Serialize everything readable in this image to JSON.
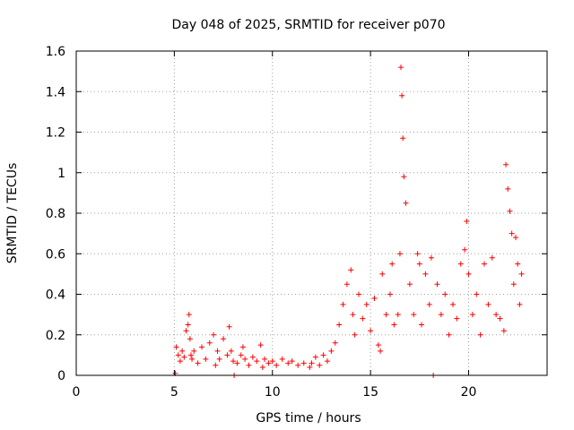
{
  "chart_data": {
    "type": "scatter",
    "title": "Day 048 of 2025, SRMTID for receiver p070",
    "xlabel": "GPS time / hours",
    "ylabel": "SRMTID / TECUs",
    "xlim": [
      0,
      24
    ],
    "ylim": [
      0,
      1.6
    ],
    "xticks": [
      0,
      5,
      10,
      15,
      20
    ],
    "xtick_labels": [
      "0",
      "5",
      "10",
      "15",
      "20"
    ],
    "yticks": [
      0,
      0.2,
      0.4,
      0.6,
      0.8,
      1,
      1.2,
      1.4,
      1.6
    ],
    "ytick_labels": [
      "0",
      "0.2",
      "0.4",
      "0.6",
      "0.8",
      "1",
      "1.2",
      "1.4",
      "1.6"
    ],
    "grid": true,
    "marker": "+",
    "colors": {
      "series": "#ff0000",
      "grid": "#a0a0a0",
      "axis": "#000000"
    },
    "series": [
      {
        "name": "SRMTID",
        "x": [
          5.05,
          5.1,
          5.2,
          5.3,
          5.4,
          5.5,
          5.6,
          5.7,
          5.75,
          5.8,
          5.85,
          5.9,
          6.0,
          6.2,
          6.4,
          6.6,
          6.8,
          7.0,
          7.1,
          7.2,
          7.3,
          7.5,
          7.7,
          7.8,
          7.9,
          8.0,
          8.05,
          8.2,
          8.4,
          8.5,
          8.6,
          8.8,
          9.0,
          9.2,
          9.4,
          9.5,
          9.6,
          9.8,
          10.0,
          10.2,
          10.5,
          10.8,
          11.0,
          11.3,
          11.6,
          11.9,
          12.0,
          12.2,
          12.4,
          12.6,
          12.8,
          13.0,
          13.2,
          13.4,
          13.6,
          13.8,
          14.0,
          14.1,
          14.2,
          14.4,
          14.6,
          14.8,
          15.0,
          15.2,
          15.4,
          15.5,
          15.6,
          15.8,
          16.0,
          16.1,
          16.2,
          16.4,
          16.5,
          16.55,
          16.6,
          16.65,
          16.7,
          16.8,
          17.0,
          17.2,
          17.4,
          17.5,
          17.6,
          17.8,
          18.0,
          18.1,
          18.2,
          18.4,
          18.6,
          18.8,
          19.0,
          19.2,
          19.4,
          19.6,
          19.8,
          19.9,
          20.0,
          20.2,
          20.4,
          20.6,
          20.8,
          21.0,
          21.2,
          21.4,
          21.6,
          21.8,
          21.9,
          22.0,
          22.1,
          22.2,
          22.3,
          22.4,
          22.5,
          22.6,
          22.7
        ],
        "values": [
          0.01,
          0.14,
          0.1,
          0.07,
          0.12,
          0.09,
          0.22,
          0.25,
          0.3,
          0.18,
          0.1,
          0.08,
          0.12,
          0.06,
          0.14,
          0.08,
          0.16,
          0.2,
          0.05,
          0.12,
          0.08,
          0.18,
          0.1,
          0.24,
          0.12,
          0.07,
          0.0,
          0.06,
          0.1,
          0.14,
          0.08,
          0.05,
          0.09,
          0.07,
          0.15,
          0.04,
          0.08,
          0.06,
          0.07,
          0.05,
          0.08,
          0.06,
          0.07,
          0.05,
          0.06,
          0.04,
          0.06,
          0.09,
          0.05,
          0.1,
          0.07,
          0.12,
          0.16,
          0.25,
          0.35,
          0.45,
          0.52,
          0.3,
          0.2,
          0.4,
          0.28,
          0.35,
          0.22,
          0.38,
          0.15,
          0.12,
          0.5,
          0.3,
          0.4,
          0.55,
          0.25,
          0.3,
          0.6,
          1.52,
          1.38,
          1.17,
          0.98,
          0.85,
          0.45,
          0.3,
          0.6,
          0.55,
          0.25,
          0.5,
          0.35,
          0.58,
          0.0,
          0.45,
          0.3,
          0.4,
          0.2,
          0.35,
          0.28,
          0.55,
          0.62,
          0.76,
          0.5,
          0.3,
          0.4,
          0.2,
          0.55,
          0.35,
          0.58,
          0.3,
          0.28,
          0.22,
          1.04,
          0.92,
          0.81,
          0.7,
          0.45,
          0.68,
          0.55,
          0.35,
          0.5
        ]
      }
    ]
  }
}
